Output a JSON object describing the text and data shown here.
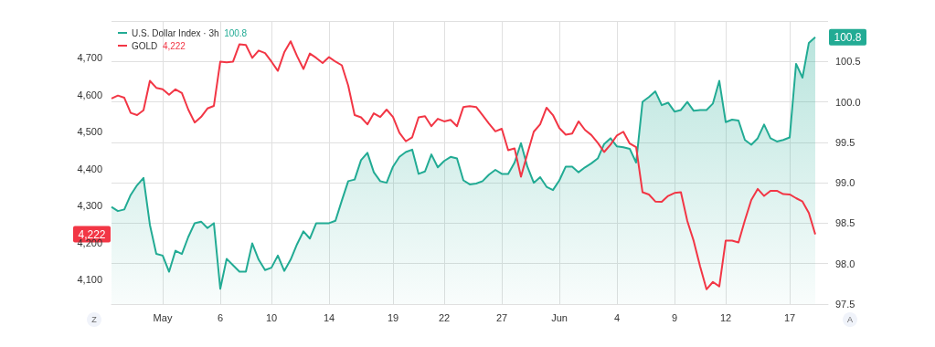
{
  "chart_data": {
    "type": "line",
    "categories": [
      null,
      null,
      null,
      null,
      null,
      null,
      null,
      null,
      "May",
      null,
      null,
      null,
      null,
      null,
      null,
      null,
      null,
      "6",
      null,
      null,
      null,
      null,
      null,
      null,
      null,
      "10",
      null,
      null,
      null,
      null,
      null,
      null,
      null,
      null,
      "14",
      null,
      null,
      null,
      null,
      null,
      null,
      null,
      null,
      null,
      "19",
      null,
      null,
      null,
      null,
      null,
      null,
      null,
      "22",
      null,
      null,
      null,
      null,
      null,
      null,
      null,
      null,
      "27",
      null,
      null,
      null,
      null,
      null,
      null,
      null,
      null,
      "Jun",
      null,
      null,
      null,
      null,
      null,
      null,
      null,
      null,
      "4",
      null,
      null,
      null,
      null,
      null,
      null,
      null,
      null,
      "9",
      null,
      null,
      null,
      null,
      null,
      null,
      null,
      "12",
      null,
      null,
      null,
      null,
      null,
      null,
      null,
      null,
      null,
      "17",
      null,
      null,
      null,
      null,
      null,
      null
    ],
    "ylim": [
      4033,
      4800
    ],
    "yticks": [
      {
        "value": 4100,
        "label": "4,100"
      },
      {
        "value": 4200,
        "label": "4,200"
      },
      {
        "value": 4300,
        "label": "4,300"
      },
      {
        "value": 4400,
        "label": "4,400"
      },
      {
        "value": 4500,
        "label": "4,500"
      },
      {
        "value": 4600,
        "label": "4,600"
      },
      {
        "value": 4700,
        "label": "4,700"
      }
    ],
    "y2lim": [
      97.5,
      101
    ],
    "y2ticks": [
      97.5,
      {
        "value": 98,
        "label": "98.0"
      },
      98.5,
      {
        "value": 99,
        "label": "99.0"
      },
      99.5,
      {
        "value": 100,
        "label": "100.0"
      },
      100.5
    ],
    "grid": true,
    "legend": "top left",
    "marker": "none",
    "annotations": [
      "100.8",
      "4,222",
      "Z",
      "A"
    ],
    "series": [
      {
        "name": "U.S. Dollar Index · 3h",
        "type": "area",
        "axis": "y2",
        "color": "#22ab94",
        "values": [
          98.7,
          98.65,
          98.67,
          98.85,
          98.97,
          99.06,
          98.48,
          98.12,
          98.1,
          97.9,
          98.16,
          98.12,
          98.33,
          98.5,
          98.52,
          98.44,
          98.5,
          97.69,
          98.06,
          97.98,
          97.9,
          97.9,
          98.25,
          98.05,
          97.92,
          97.95,
          98.1,
          97.91,
          98.05,
          98.24,
          98.4,
          98.31,
          98.5,
          98.5,
          98.5,
          98.53,
          98.78,
          99.02,
          99.04,
          99.28,
          99.37,
          99.13,
          99.02,
          99.0,
          99.2,
          99.32,
          99.38,
          99.41,
          99.11,
          99.14,
          99.35,
          99.19,
          99.27,
          99.32,
          99.3,
          99.03,
          98.98,
          98.99,
          99.02,
          99.1,
          99.16,
          99.11,
          99.11,
          99.25,
          99.49,
          99.2,
          99.0,
          99.07,
          98.95,
          98.91,
          99.03,
          99.2,
          99.2,
          99.13,
          99.19,
          99.24,
          99.3,
          99.48,
          99.55,
          99.45,
          99.44,
          99.42,
          99.25,
          100.0,
          100.06,
          100.13,
          99.96,
          99.99,
          99.88,
          99.9,
          100.0,
          99.89,
          99.9,
          99.9,
          99.98,
          100.26,
          99.75,
          99.78,
          99.77,
          99.53,
          99.47,
          99.55,
          99.72,
          99.55,
          99.51,
          99.53,
          99.56,
          100.47,
          100.3,
          100.73,
          100.8,
          null,
          null
        ]
      },
      {
        "name": "GOLD",
        "type": "line",
        "axis": "y",
        "color": "#f23645",
        "values": [
          4590,
          4598,
          4592,
          4551,
          4545,
          4558,
          4638,
          4619,
          4615,
          4600,
          4615,
          4605,
          4560,
          4525,
          4540,
          4563,
          4570,
          4690,
          4688,
          4690,
          4737,
          4735,
          4700,
          4720,
          4713,
          4690,
          4665,
          4715,
          4745,
          4705,
          4670,
          4712,
          4700,
          4686,
          4702,
          4690,
          4680,
          4625,
          4545,
          4539,
          4520,
          4550,
          4540,
          4560,
          4540,
          4497,
          4474,
          4485,
          4539,
          4542,
          4515,
          4535,
          4528,
          4532,
          4515,
          4567,
          4569,
          4567,
          4545,
          4522,
          4501,
          4508,
          4450,
          4455,
          4378,
          4440,
          4500,
          4520,
          4565,
          4545,
          4510,
          4492,
          4495,
          4528,
          4505,
          4491,
          4470,
          4445,
          4465,
          4490,
          4500,
          4468,
          4458,
          4336,
          4330,
          4311,
          4310,
          4326,
          4334,
          4336,
          4258,
          4204,
          4135,
          4073,
          4093,
          4081,
          4205,
          4205,
          4200,
          4260,
          4315,
          4345,
          4326,
          4340,
          4340,
          4331,
          4330,
          4320,
          4311,
          4280,
          4222,
          null,
          null
        ]
      }
    ]
  }
}
